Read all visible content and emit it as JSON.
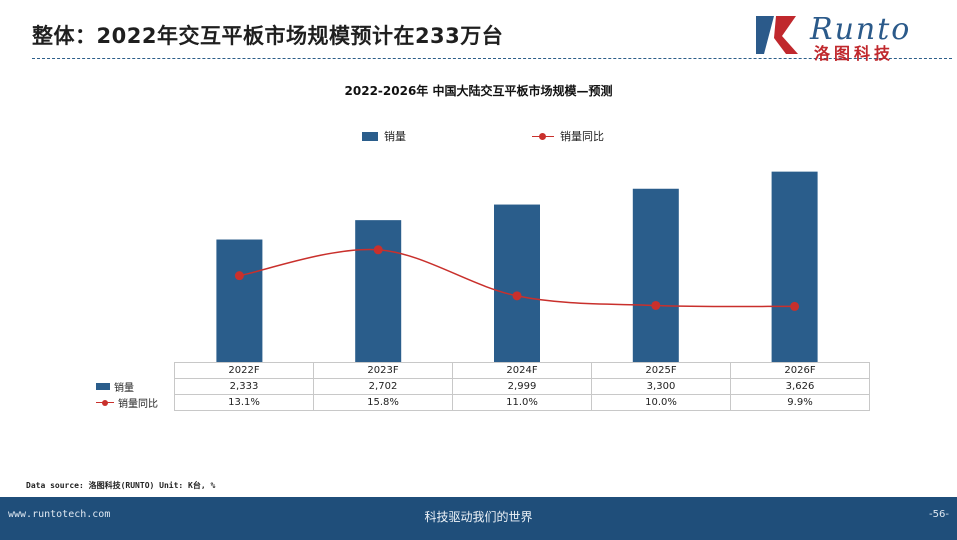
{
  "slide": {
    "title": "整体：2022年交互平板市场规模预计在233万台",
    "logo_text": "Runto",
    "logo_cn": "洛图科技"
  },
  "chart_data": {
    "type": "bar",
    "title": "2022-2026年 中国大陆交互平板市场规模—预测",
    "categories": [
      "2022F",
      "2023F",
      "2024F",
      "2025F",
      "2026F"
    ],
    "series": [
      {
        "name": "销量",
        "type": "bar",
        "values": [
          2333,
          2702,
          2999,
          3300,
          3626
        ],
        "display": [
          "2,333",
          "2,702",
          "2,999",
          "3,300",
          "3,626"
        ],
        "color": "#2a5d8b"
      },
      {
        "name": "销量同比",
        "type": "line",
        "values": [
          13.1,
          15.8,
          11.0,
          10.0,
          9.9
        ],
        "display": [
          "13.1%",
          "15.8%",
          "11.0%",
          "10.0%",
          "9.9%"
        ],
        "color": "#c9302c"
      }
    ],
    "legend_position": "top",
    "data_table": true,
    "grid": false
  },
  "source_note": "Data source: 洛图科技(RUNTO)    Unit: K台, %",
  "footer": {
    "url": "www.runtotech.com",
    "slogan": "科技驱动我们的世界",
    "page": "-56-"
  },
  "colors": {
    "brand_blue": "#2b5a8a",
    "brand_red": "#c0282d",
    "bar": "#2a5d8b",
    "line": "#c9302c",
    "footer_bg": "#1f4e7a"
  }
}
